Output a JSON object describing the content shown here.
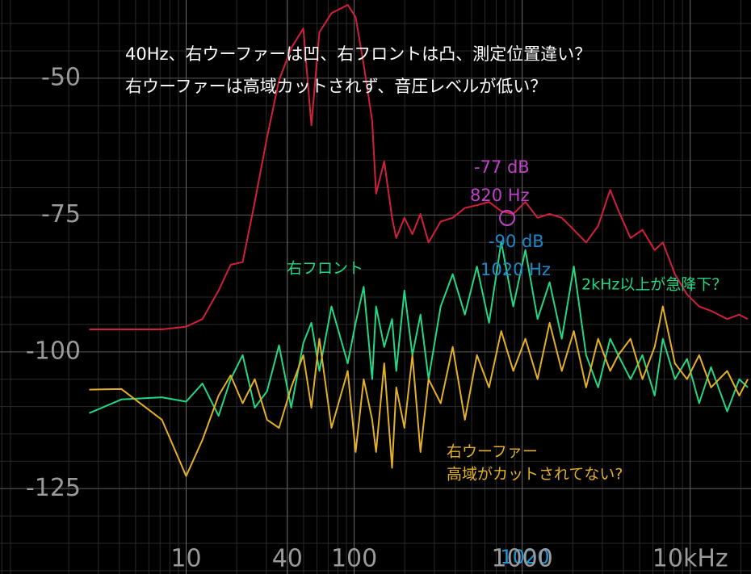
{
  "chart_data": {
    "type": "line",
    "log_x": true,
    "grid": true,
    "minor_grid": true,
    "xlim": [
      0.78,
      23000
    ],
    "ylim": [
      -140.6,
      -35.7
    ],
    "xticks": [
      10,
      40,
      100,
      1000,
      {
        "value": 10000,
        "label": "10kHz"
      }
    ],
    "yticks": [
      -50,
      -75,
      -100,
      -125
    ],
    "x": [
      2.65,
      4.12,
      7.17,
      10,
      12.5,
      15.6,
      18.4,
      21.7,
      25.6,
      30.3,
      35.7,
      42.2,
      49.8,
      55.6,
      62.1,
      73.3,
      91.5,
      102,
      114,
      128,
      135,
      151,
      168,
      178,
      199,
      222,
      248,
      277,
      327,
      386,
      456,
      538,
      635,
      750,
      885,
      1045,
      1234,
      1455,
      1720,
      2030,
      2400,
      2830,
      3340,
      3730,
      4410,
      5200,
      6140,
      6870,
      8110,
      9570,
      11300,
      13300,
      16600,
      19600,
      22000
    ],
    "series": [
      {
        "color": "#d21f3c",
        "values": [
          -95.9,
          -95.9,
          -95.9,
          -95.4,
          -94,
          -88.8,
          -84.1,
          -83.6,
          -72.6,
          -60.8,
          -50.4,
          -44.5,
          -40.9,
          -58.6,
          -41.6,
          -38.1,
          -36.6,
          -38.8,
          -47.5,
          -57.8,
          -71.1,
          -65.2,
          -75.5,
          -79.2,
          -75.5,
          -78.5,
          -74.8,
          -80,
          -76.2,
          -75.5,
          -73.7,
          -73.2,
          -72.6,
          -74.3,
          -74.8,
          -72.6,
          -75.5,
          -74.8,
          -75.5,
          -77.7,
          -80,
          -77,
          -70.4,
          -74.1,
          -79.2,
          -77.7,
          -81.4,
          -80,
          -85.8,
          -89.5,
          -91.7,
          -92.5,
          -94,
          -93.2,
          -94
        ]
      },
      {
        "name": "右フロント",
        "color": "#22d884",
        "values": [
          -111.2,
          -108.7,
          -108.3,
          -109.1,
          -105.8,
          -111.7,
          -105,
          -100.6,
          -110.2,
          -107.2,
          -98.8,
          -110.2,
          -98.4,
          -94.7,
          -103.5,
          -91.7,
          -102.1,
          -94.7,
          -88.1,
          -105,
          -91.7,
          -99.1,
          -94,
          -103.5,
          -88.8,
          -100.6,
          -93.2,
          -105,
          -91.7,
          -85.8,
          -93.2,
          -84.4,
          -94.7,
          -79.9,
          -91.7,
          -81.4,
          -94,
          -87.3,
          -97.6,
          -84.4,
          -100.6,
          -106.5,
          -97.6,
          -100.6,
          -105,
          -100.6,
          -108,
          -97.6,
          -105,
          -101.3,
          -109.4,
          -102.8,
          -110.9,
          -105,
          -106.5
        ]
      },
      {
        "name": "右ウーファー",
        "color": "#e3b024",
        "values": [
          -106.9,
          -106.8,
          -112.4,
          -122.7,
          -116.1,
          -108,
          -104.3,
          -109.4,
          -105,
          -112.4,
          -113.9,
          -106.5,
          -100.6,
          -110.2,
          -97.6,
          -113.9,
          -103.5,
          -118.3,
          -105,
          -112.4,
          -118.3,
          -102.1,
          -121.2,
          -106.5,
          -113.9,
          -100.6,
          -118.3,
          -105,
          -109.4,
          -99.1,
          -112.4,
          -100.6,
          -106.5,
          -96.2,
          -103.5,
          -97.6,
          -105,
          -94.7,
          -103.5,
          -96.2,
          -106.5,
          -97.6,
          -103.5,
          -100.6,
          -97.6,
          -105,
          -99.1,
          -91.7,
          -102.1,
          -105,
          -100.6,
          -106.5,
          -103.5,
          -108,
          -105
        ]
      }
    ],
    "annotations": [
      "40Hz、右ウーファーは凹、右フロントは凸、測定位置違い？",
      "右ウーファーは高域カットされず、音圧レベルが低い？",
      "2kHz以上が急降下？",
      "高域がカットされてない?"
    ],
    "markers": [
      "-77 dB",
      "820 Hz",
      "-90 dB",
      "1020 Hz"
    ],
    "cursor_label": "1020"
  }
}
